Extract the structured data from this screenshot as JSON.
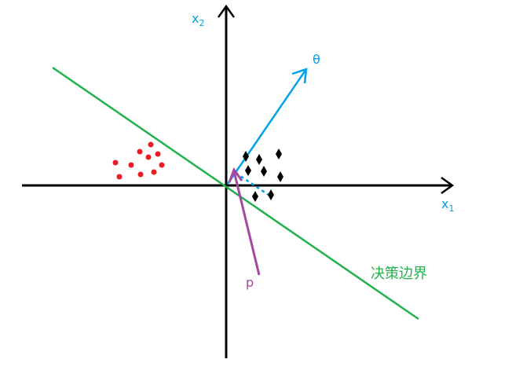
{
  "labels": {
    "x1": "x",
    "x1_sub": "1",
    "x2": "x",
    "x2_sub": "2",
    "theta": "θ",
    "p": "p",
    "boundary": "决策边界"
  },
  "colors": {
    "axis": "#000000",
    "boundary": "#22b14c",
    "theta": "#00a2e8",
    "p": "#a349a4",
    "red_points": "#ed1c24",
    "black_points": "#000000"
  }
}
